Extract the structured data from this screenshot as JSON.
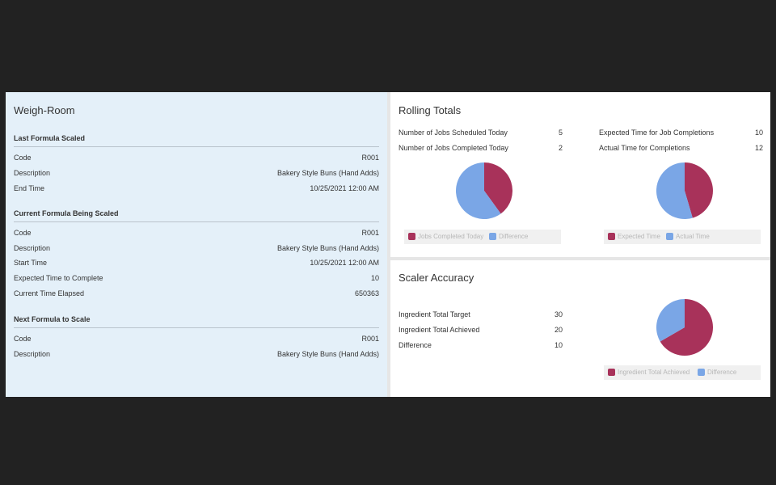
{
  "colors": {
    "primary": "#a8325a",
    "secondary": "#7aa6e6"
  },
  "weigh_room": {
    "title": "Weigh-Room",
    "last": {
      "heading": "Last Formula Scaled",
      "rows": [
        {
          "label": "Code",
          "value": "R001"
        },
        {
          "label": "Description",
          "value": "Bakery Style Buns (Hand Adds)"
        },
        {
          "label": "End Time",
          "value": "10/25/2021 12:00 AM"
        }
      ]
    },
    "current": {
      "heading": "Current Formula Being Scaled",
      "rows": [
        {
          "label": "Code",
          "value": "R001"
        },
        {
          "label": "Description",
          "value": "Bakery Style Buns (Hand Adds)"
        },
        {
          "label": "Start Time",
          "value": "10/25/2021 12:00 AM"
        },
        {
          "label": "Expected Time to Complete",
          "value": "10"
        },
        {
          "label": "Current Time Elapsed",
          "value": "650363"
        }
      ]
    },
    "next": {
      "heading": "Next Formula to Scale",
      "rows": [
        {
          "label": "Code",
          "value": "R001"
        },
        {
          "label": "Description",
          "value": "Bakery Style Buns (Hand Adds)"
        }
      ]
    }
  },
  "rolling": {
    "title": "Rolling Totals",
    "jobs": {
      "scheduled_label": "Number of Jobs Scheduled Today",
      "scheduled_value": "5",
      "completed_label": "Number of Jobs Completed Today",
      "completed_value": "2"
    },
    "time": {
      "expected_label": "Expected Time for Job Completions",
      "expected_value": "10",
      "actual_label": "Actual Time for Completions",
      "actual_value": "12"
    }
  },
  "accuracy": {
    "title": "Scaler Accuracy",
    "target_label": "Ingredient Total Target",
    "target_value": "30",
    "achieved_label": "Ingredient Total Achieved",
    "achieved_value": "20",
    "difference_label": "Difference",
    "difference_value": "10"
  },
  "chart_data": [
    {
      "type": "pie",
      "categories": [
        "Jobs Completed Today",
        "Difference"
      ],
      "values": [
        2,
        3
      ]
    },
    {
      "type": "pie",
      "categories": [
        "Expected Time",
        "Actual Time"
      ],
      "values": [
        10,
        12
      ]
    },
    {
      "type": "pie",
      "categories": [
        "Ingredient Total Achieved",
        "Difference"
      ],
      "values": [
        20,
        10
      ]
    }
  ]
}
